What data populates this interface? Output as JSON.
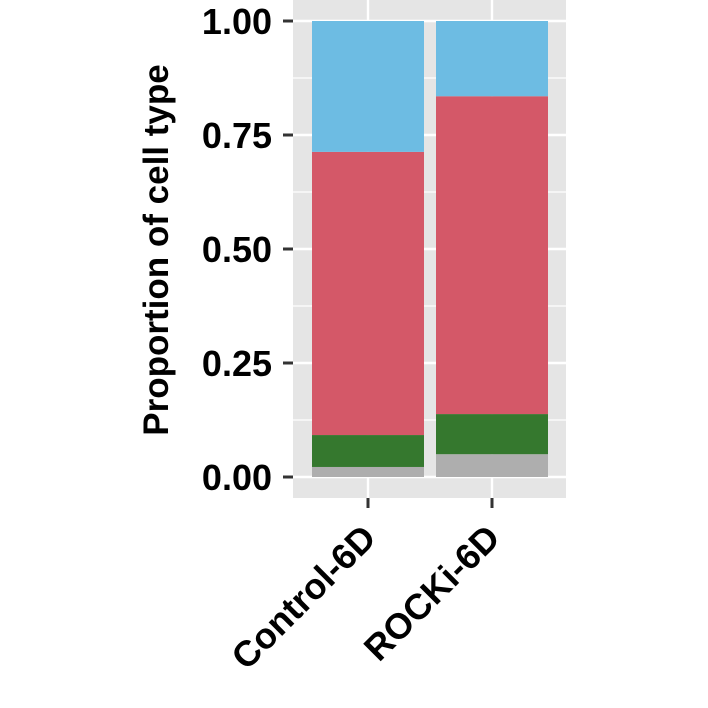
{
  "chart_data": {
    "type": "bar",
    "stacked": true,
    "categories": [
      "Control-6D",
      "ROCKi-6D"
    ],
    "series": [
      {
        "color": "#AEAEAE",
        "values": [
          0.022,
          0.05
        ]
      },
      {
        "color": "#35782E",
        "values": [
          0.07,
          0.088
        ]
      },
      {
        "color": "#D45868",
        "values": [
          0.621,
          0.697
        ]
      },
      {
        "color": "#6DBCE3",
        "values": [
          0.287,
          0.165
        ]
      }
    ],
    "ylabel": "Proportion of cell type",
    "xlabel": "",
    "ylim": [
      -0.05,
      1.0
    ],
    "yticks": [
      "0.00",
      "0.25",
      "0.50",
      "0.75",
      "1.00"
    ],
    "ytick_values": [
      0,
      0.25,
      0.5,
      0.75,
      1.0
    ],
    "grid": true,
    "panel_background": "#E5E5E5",
    "gridline_color": "#FFFFFF",
    "legend": "none"
  }
}
